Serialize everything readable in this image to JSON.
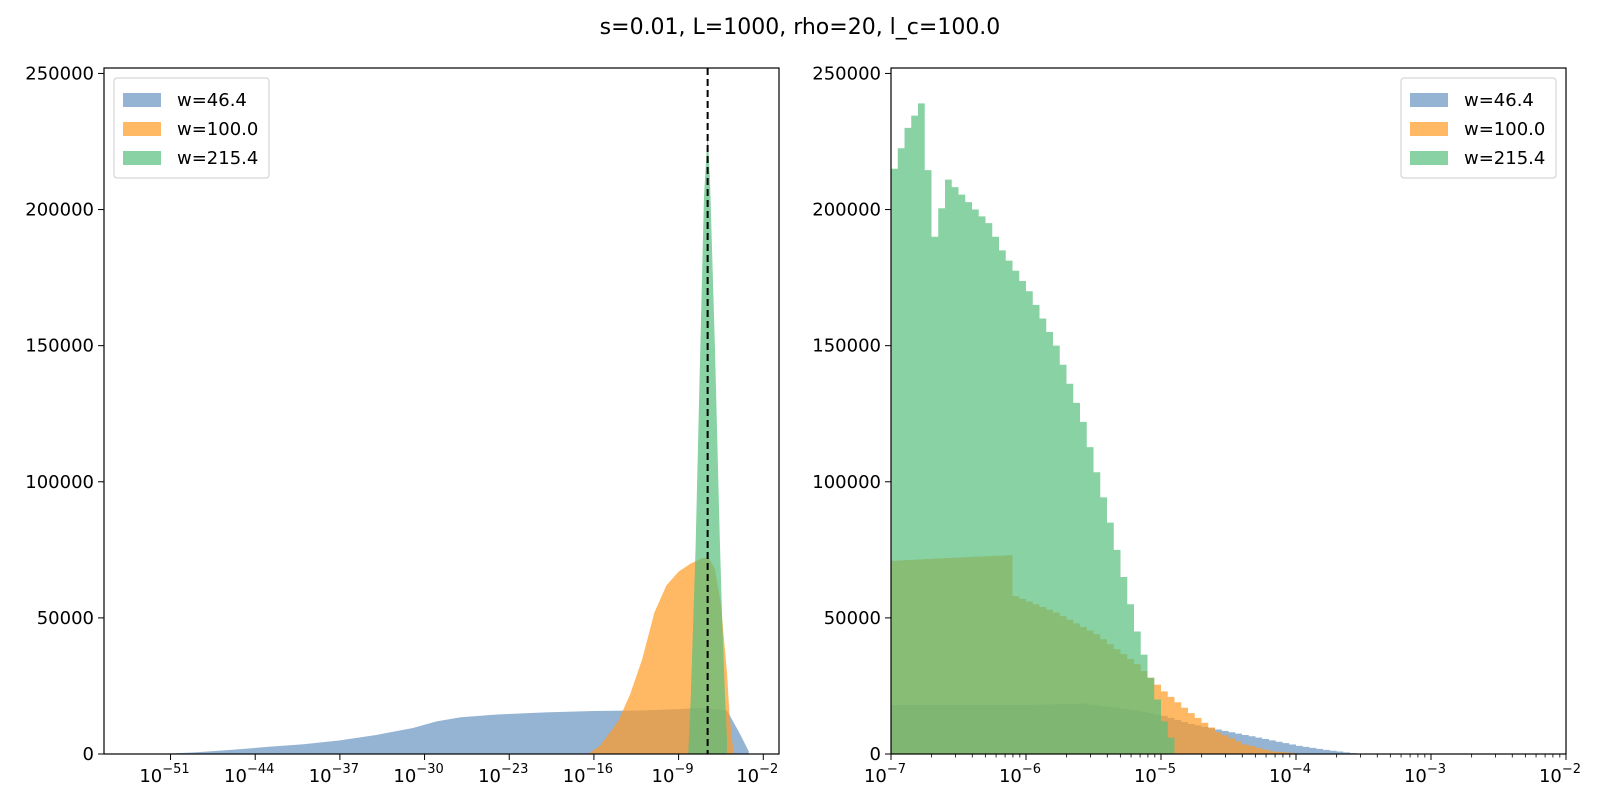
{
  "figure": {
    "suptitle": "s=0.01, L=1000, rho=20, l_c=100.0"
  },
  "colors": {
    "w46": "#6893bf",
    "w100": "#ff9b23",
    "w215": "#56bf7c"
  },
  "chart_data": [
    {
      "type": "histogram",
      "xscale": "log",
      "xlim_log10": [
        -56.5,
        -0.7
      ],
      "ylim": [
        0,
        252000
      ],
      "yticks": [
        {
          "value": 0,
          "label": "0"
        },
        {
          "value": 50000,
          "label": "50000"
        },
        {
          "value": 100000,
          "label": "100000"
        },
        {
          "value": 150000,
          "label": "150000"
        },
        {
          "value": 200000,
          "label": "200000"
        },
        {
          "value": 250000,
          "label": "250000"
        }
      ],
      "xticks": [
        {
          "exp": -51,
          "base": "10",
          "sup": "−51"
        },
        {
          "exp": -44,
          "base": "10",
          "sup": "−44"
        },
        {
          "exp": -37,
          "base": "10",
          "sup": "−37"
        },
        {
          "exp": -30,
          "base": "10",
          "sup": "−30"
        },
        {
          "exp": -23,
          "base": "10",
          "sup": "−23"
        },
        {
          "exp": -16,
          "base": "10",
          "sup": "−16"
        },
        {
          "exp": -9,
          "base": "10",
          "sup": "−9"
        },
        {
          "exp": -2,
          "base": "10",
          "sup": "−2"
        }
      ],
      "vline_log10": -6.6,
      "legend": {
        "position": "top-left"
      },
      "series": [
        {
          "name": "w=46.4",
          "color_key": "w46",
          "x_log10": [
            -52,
            -49,
            -46,
            -43,
            -40,
            -37,
            -34,
            -31,
            -29,
            -27,
            -24,
            -20,
            -16,
            -12,
            -9,
            -7,
            -5,
            -4,
            -3.2,
            -3.2
          ],
          "y": [
            0,
            600,
            1500,
            2600,
            3600,
            5000,
            7000,
            9500,
            12000,
            13500,
            14500,
            15300,
            15800,
            16000,
            16500,
            17000,
            16000,
            8000,
            1000,
            0
          ]
        },
        {
          "name": "w=100.0",
          "color_key": "w100",
          "x_log10": [
            -16.5,
            -15.5,
            -14,
            -13,
            -12,
            -11,
            -10,
            -9,
            -8,
            -7,
            -6.5,
            -6,
            -5.5,
            -5,
            -4.8,
            -4.5,
            -4.5
          ],
          "y": [
            0,
            3000,
            12000,
            22000,
            35000,
            52000,
            62000,
            67000,
            70000,
            72000,
            72000,
            68000,
            55000,
            30000,
            15000,
            2000,
            0
          ]
        },
        {
          "name": "w=215.4",
          "color_key": "w215",
          "x_log10": [
            -8.2,
            -8.0,
            -7.6,
            -7.2,
            -6.9,
            -6.6,
            -6.4,
            -6.2,
            -6.0,
            -5.8,
            -5.6,
            -5.4,
            -5.2,
            -5.0,
            -5.0
          ],
          "y": [
            0,
            20000,
            75000,
            150000,
            205000,
            228000,
            210000,
            180000,
            150000,
            115000,
            80000,
            50000,
            25000,
            5000,
            0
          ]
        }
      ]
    },
    {
      "type": "histogram",
      "xscale": "log",
      "xlim_log10": [
        -7,
        -2
      ],
      "ylim": [
        0,
        252000
      ],
      "yticks": [
        {
          "value": 0,
          "label": "0"
        },
        {
          "value": 50000,
          "label": "50000"
        },
        {
          "value": 100000,
          "label": "100000"
        },
        {
          "value": 150000,
          "label": "150000"
        },
        {
          "value": 200000,
          "label": "200000"
        },
        {
          "value": 250000,
          "label": "250000"
        }
      ],
      "xticks": [
        {
          "exp": -7,
          "base": "10",
          "sup": "−7"
        },
        {
          "exp": -6,
          "base": "10",
          "sup": "−6"
        },
        {
          "exp": -5,
          "base": "10",
          "sup": "−5"
        },
        {
          "exp": -4,
          "base": "10",
          "sup": "−4"
        },
        {
          "exp": -3,
          "base": "10",
          "sup": "−3"
        },
        {
          "exp": -2,
          "base": "10",
          "sup": "−2"
        }
      ],
      "legend": {
        "position": "top-right"
      },
      "bin_width_log10": 0.05,
      "series": [
        {
          "name": "w=46.4",
          "color_key": "w46",
          "x_log10": [
            -7.0,
            -6.5,
            -6.0,
            -5.6,
            -5.2,
            -5.0,
            -4.8,
            -4.6,
            -4.4,
            -4.2,
            -4.0,
            -3.8,
            -3.6,
            -3.5
          ],
          "y": [
            18000,
            18000,
            18000,
            18500,
            16000,
            14000,
            11000,
            9000,
            7000,
            5000,
            3000,
            1500,
            300,
            0
          ]
        },
        {
          "name": "w=100.0",
          "color_key": "w100",
          "x_log10": [
            -7.0,
            -6.6,
            -6.15,
            -6.1,
            -5.8,
            -5.5,
            -5.2,
            -5.0,
            -4.8,
            -4.6,
            -4.4,
            -4.2,
            -4.0,
            -3.9
          ],
          "y": [
            71000,
            72000,
            73000,
            58000,
            52000,
            44000,
            33000,
            23000,
            15000,
            8000,
            3500,
            1000,
            200,
            0
          ]
        },
        {
          "name": "w=215.4",
          "color_key": "w215",
          "x_log10": [
            -7.0,
            -6.9,
            -6.8,
            -6.7,
            -6.6,
            -6.4,
            -6.3,
            -6.2,
            -6.0,
            -5.8,
            -5.6,
            -5.4,
            -5.2,
            -5.1,
            -5.0,
            -4.9
          ],
          "y": [
            215000,
            230000,
            239000,
            190000,
            211000,
            200000,
            195000,
            185000,
            170000,
            150000,
            122000,
            85000,
            45000,
            28000,
            12000,
            0
          ]
        }
      ]
    }
  ]
}
